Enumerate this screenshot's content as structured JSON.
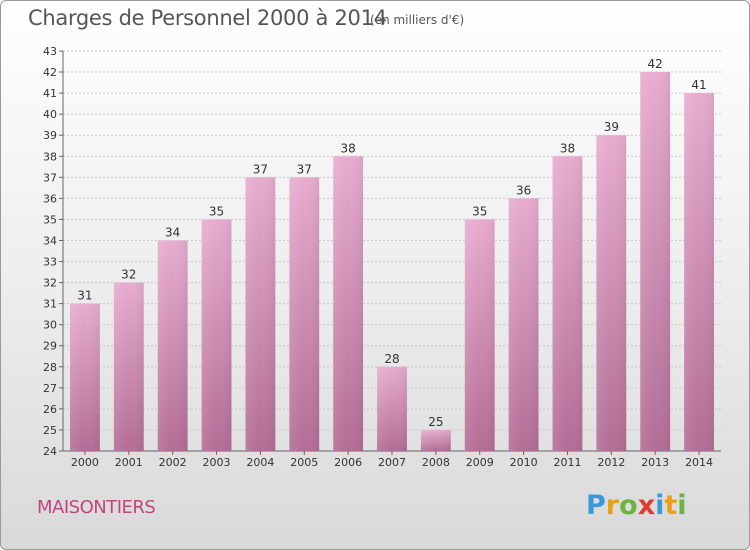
{
  "header": {
    "title": "Charges de Personnel 2000 à 2014",
    "subtitle": "(en milliers d'€)"
  },
  "footer": {
    "commune": "MAISONTIERS",
    "brand": "Proxiti",
    "brand_letters": [
      {
        "ch": "P",
        "color": "#3a9ad9"
      },
      {
        "ch": "r",
        "color": "#e8a21a"
      },
      {
        "ch": "o",
        "color": "#6cb33f"
      },
      {
        "ch": "x",
        "color": "#e23a2e"
      },
      {
        "ch": "i",
        "color": "#3a9ad9"
      },
      {
        "ch": "t",
        "color": "#e8a21a"
      },
      {
        "ch": "i",
        "color": "#6cb33f"
      }
    ]
  },
  "chart_data": {
    "type": "bar",
    "title": "Charges de Personnel 2000 à 2014",
    "subtitle": "(en milliers d'€)",
    "categories": [
      "2000",
      "2001",
      "2002",
      "2003",
      "2004",
      "2005",
      "2006",
      "2007",
      "2008",
      "2009",
      "2010",
      "2011",
      "2012",
      "2013",
      "2014"
    ],
    "values": [
      31,
      32,
      34,
      35,
      37,
      37,
      38,
      28,
      25,
      35,
      36,
      38,
      39,
      42,
      41
    ],
    "ylim": [
      24,
      43
    ],
    "yticks": [
      24,
      25,
      26,
      27,
      28,
      29,
      30,
      31,
      32,
      33,
      34,
      35,
      36,
      37,
      38,
      39,
      40,
      41,
      42,
      43
    ],
    "grid": true,
    "bar_color": "#d88cb6",
    "xlabel": "",
    "ylabel": ""
  }
}
